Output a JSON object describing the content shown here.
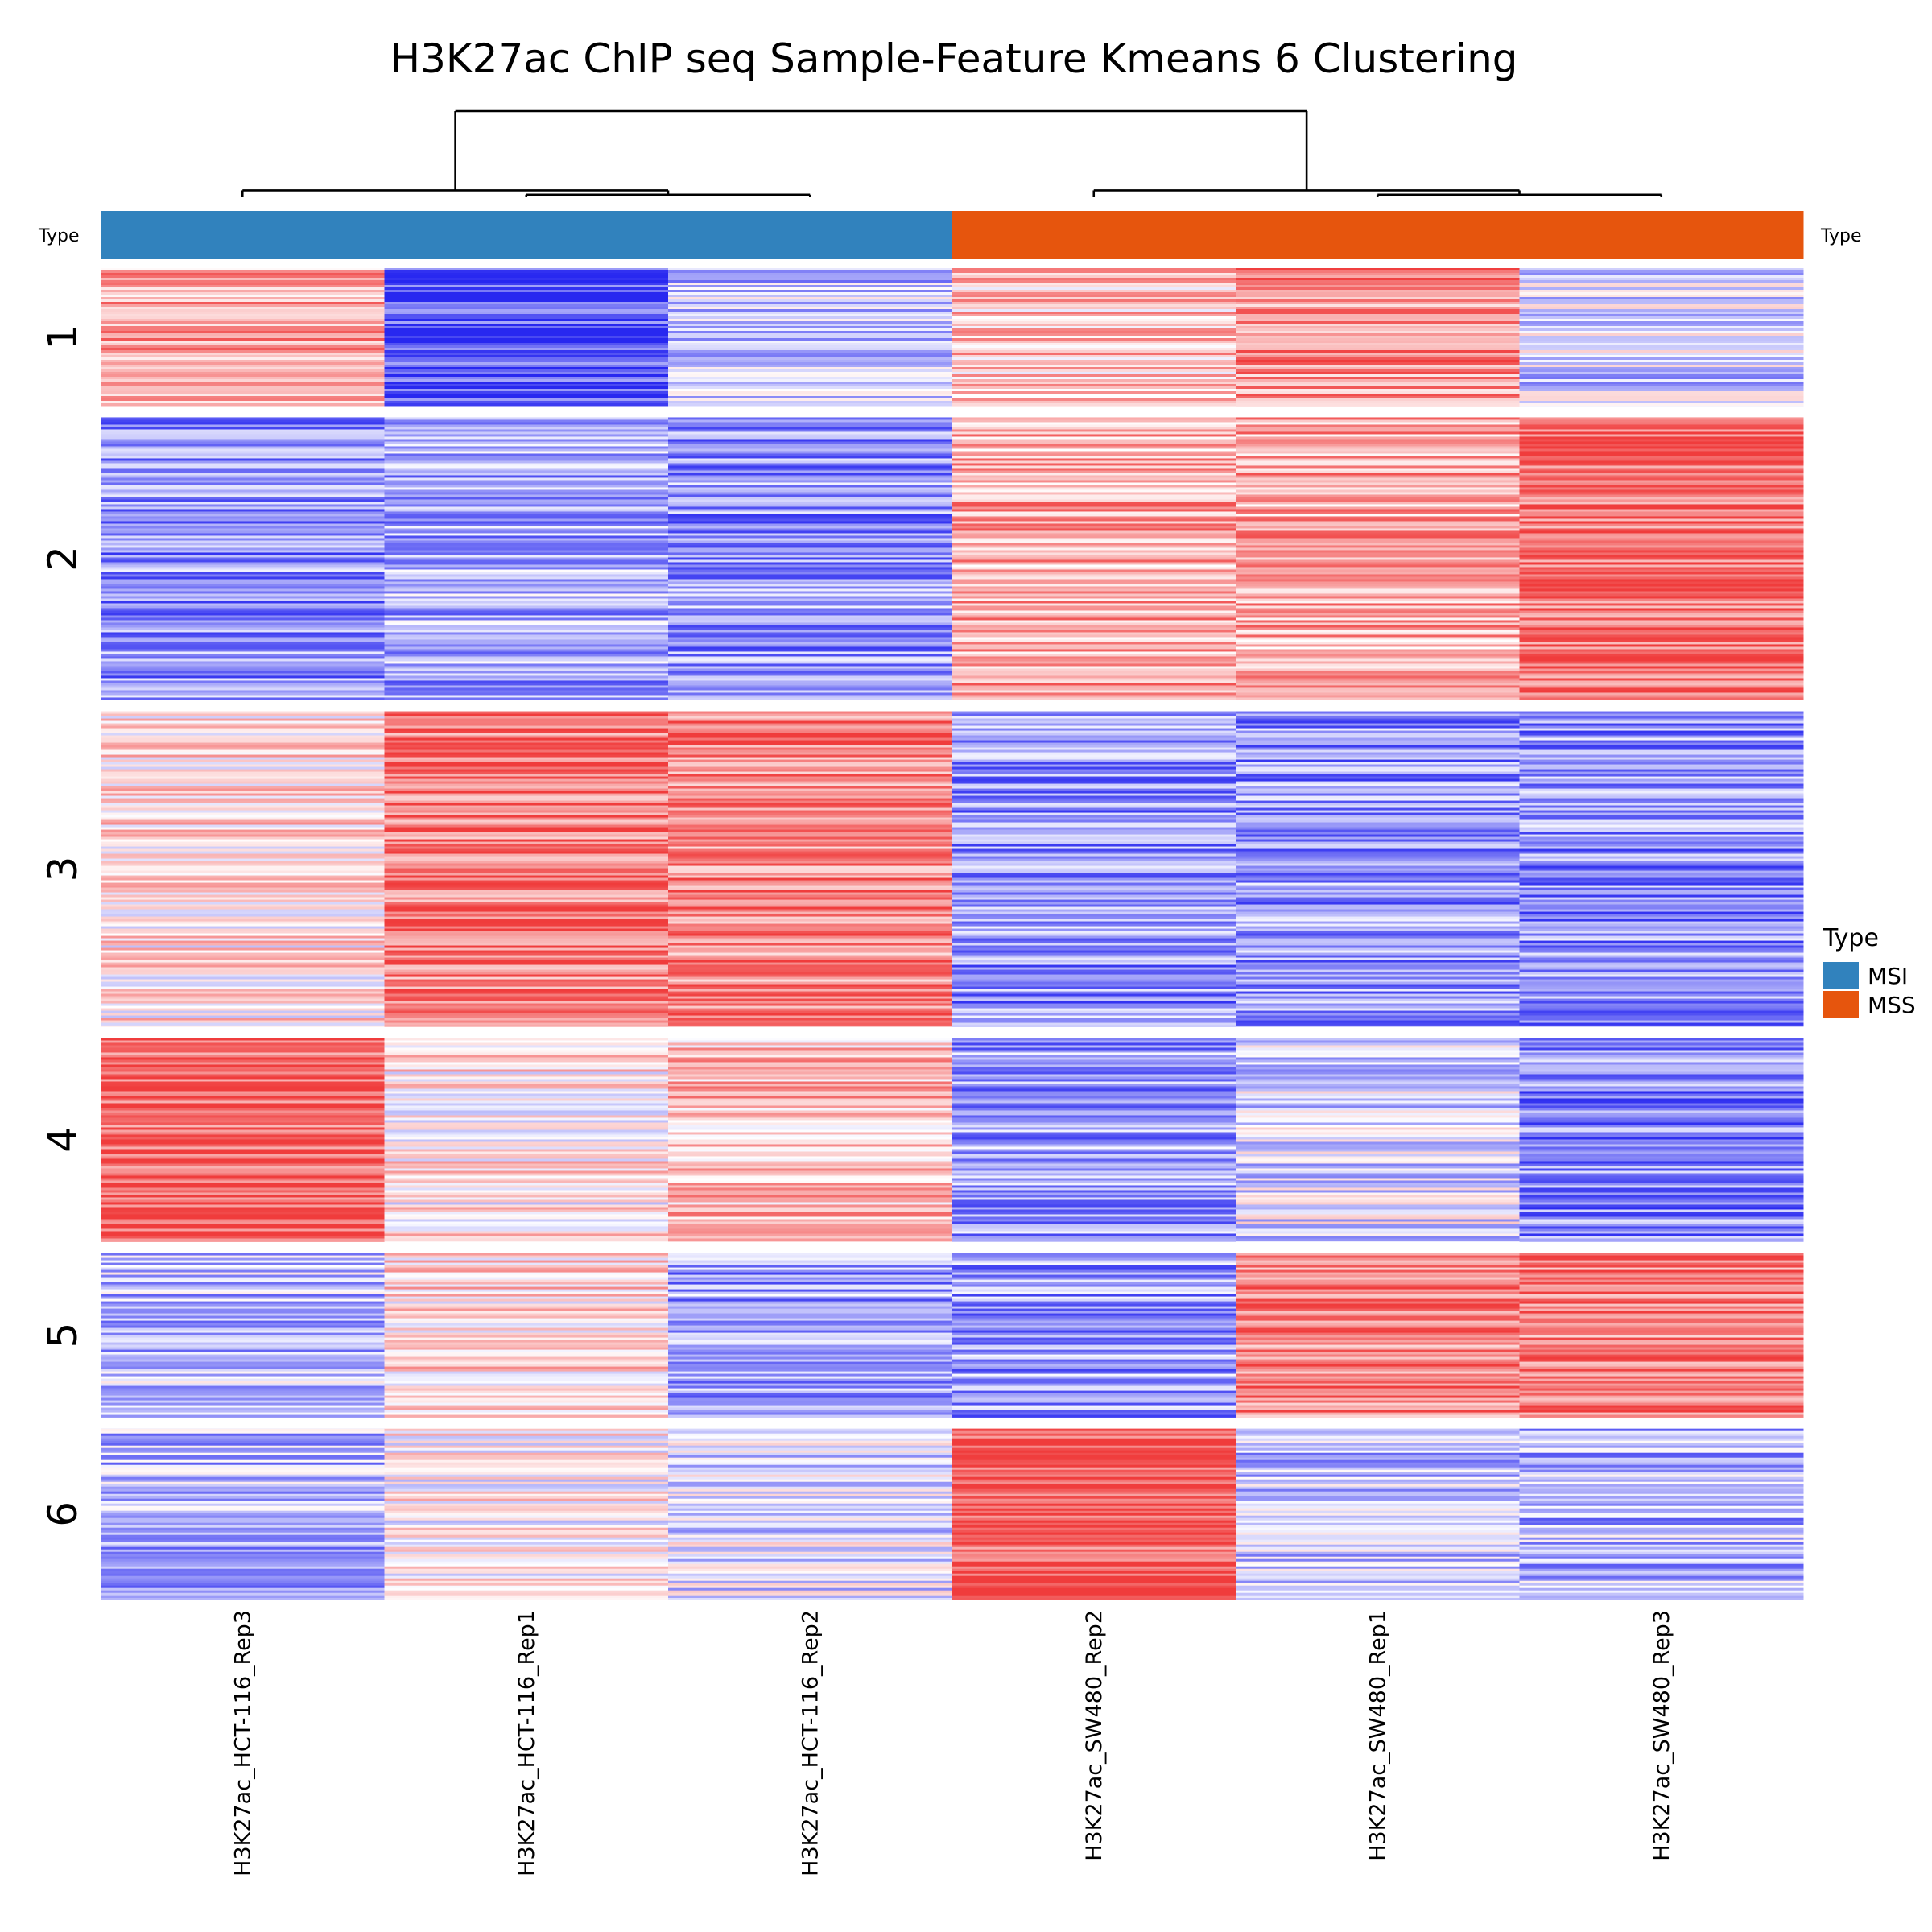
{
  "chart_data": {
    "type": "heatmap",
    "title": "H3K27ac ChIP seq Sample-Feature Kmeans 6 Clustering",
    "columns": [
      "H3K27ac_HCT-116_Rep3",
      "H3K27ac_HCT-116_Rep1",
      "H3K27ac_HCT-116_Rep2",
      "H3K27ac_SW480_Rep2",
      "H3K27ac_SW480_Rep1",
      "H3K27ac_SW480_Rep3"
    ],
    "column_type": [
      "MSI",
      "MSI",
      "MSI",
      "MSS",
      "MSS",
      "MSS"
    ],
    "annotation": {
      "name": "Type",
      "left_label": "Type",
      "right_label": "Type",
      "categories": [
        {
          "name": "MSI",
          "color": "#3182BD"
        },
        {
          "name": "MSS",
          "color": "#E6550D"
        }
      ]
    },
    "legend": {
      "title": "Type",
      "items": [
        "MSI",
        "MSS"
      ]
    },
    "clusters": [
      {
        "label": "1",
        "relative_size": 0.105,
        "column_means": [
          0.45,
          -0.85,
          -0.25,
          0.3,
          0.55,
          -0.2
        ]
      },
      {
        "label": "2",
        "relative_size": 0.215,
        "column_means": [
          -0.5,
          -0.4,
          -0.5,
          0.45,
          0.45,
          0.75
        ]
      },
      {
        "label": "3",
        "relative_size": 0.24,
        "column_means": [
          0.15,
          0.65,
          0.6,
          -0.5,
          -0.5,
          -0.5
        ]
      },
      {
        "label": "4",
        "relative_size": 0.155,
        "column_means": [
          0.8,
          0.1,
          0.35,
          -0.45,
          -0.15,
          -0.55
        ]
      },
      {
        "label": "5",
        "relative_size": 0.125,
        "column_means": [
          -0.3,
          0.2,
          -0.45,
          -0.45,
          0.65,
          0.65
        ]
      },
      {
        "label": "6",
        "relative_size": 0.13,
        "column_means": [
          -0.35,
          0.05,
          -0.15,
          0.85,
          -0.3,
          -0.35
        ]
      }
    ],
    "value_scale": {
      "low_color": "#2828F0",
      "mid_color": "#FFFFFF",
      "high_color": "#F03C3C"
    },
    "column_dendrogram": {
      "merges": [
        [
          "H3K27ac_HCT-116_Rep1",
          "H3K27ac_HCT-116_Rep2"
        ],
        [
          "H3K27ac_HCT-116_Rep3",
          "merge-1"
        ],
        [
          "H3K27ac_SW480_Rep1",
          "H3K27ac_SW480_Rep3"
        ],
        [
          "H3K27ac_SW480_Rep2",
          "merge-3"
        ],
        [
          "merge-2",
          "merge-4"
        ]
      ],
      "heights": [
        0.03,
        0.08,
        0.03,
        0.08,
        1.0
      ]
    }
  }
}
